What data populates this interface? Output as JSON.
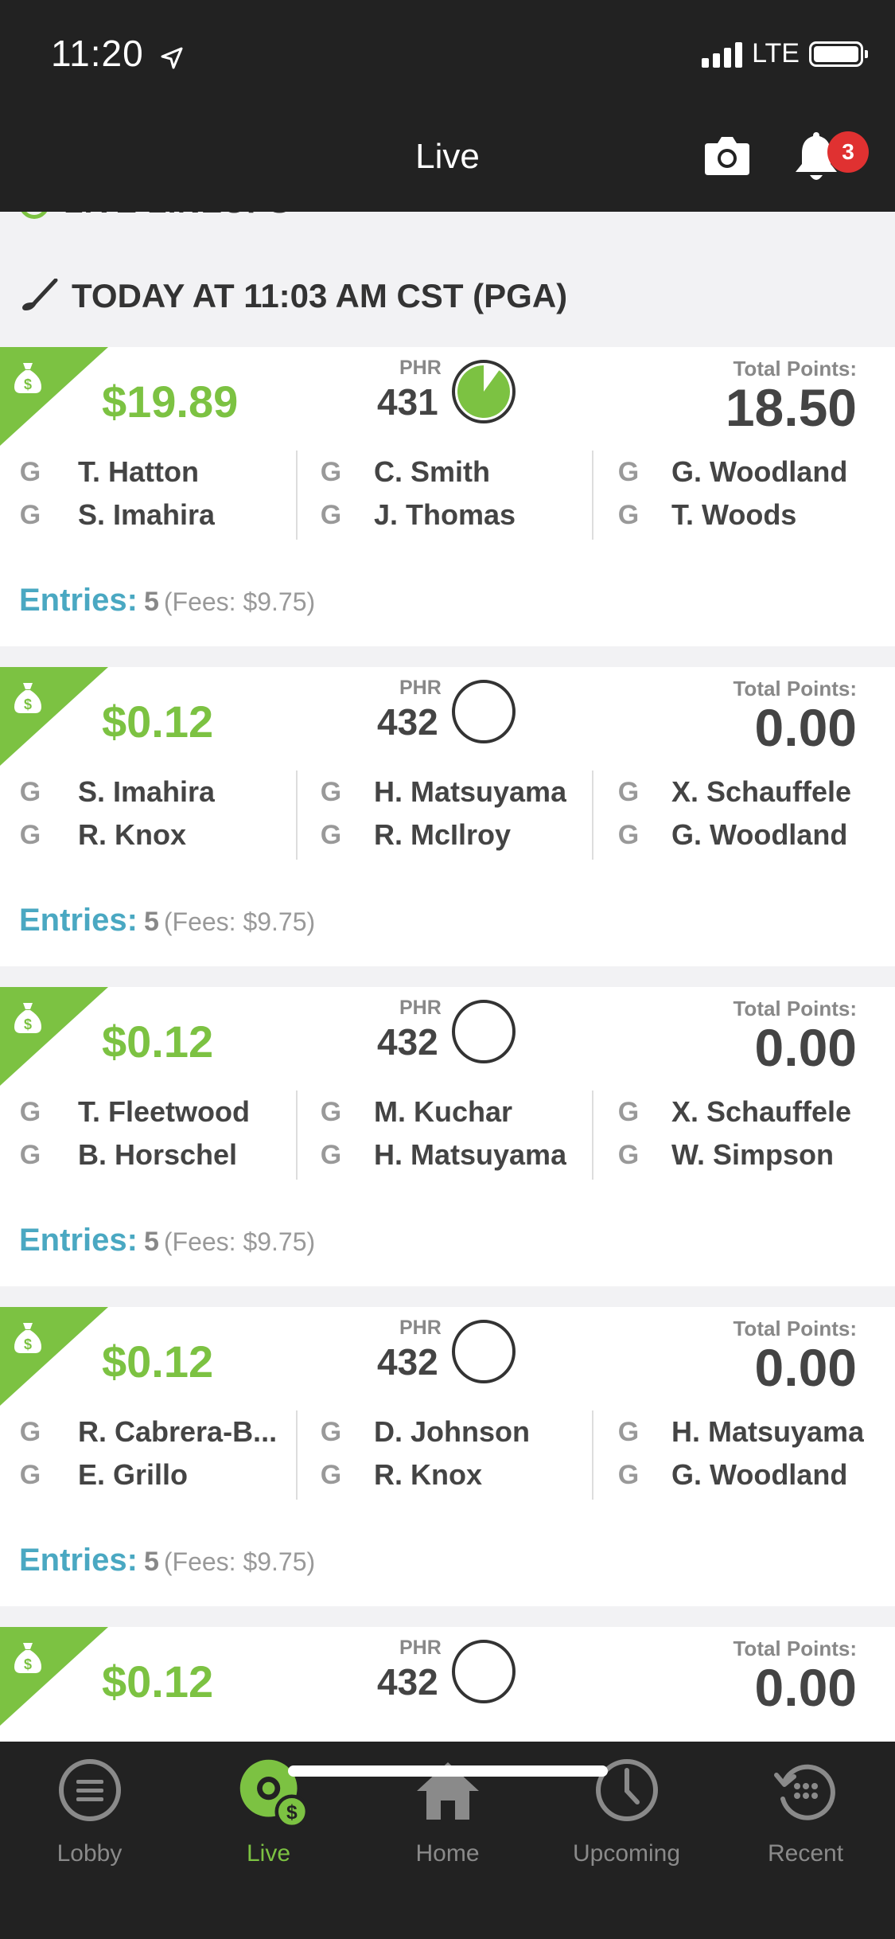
{
  "status_bar": {
    "time": "11:20",
    "network": "LTE"
  },
  "header": {
    "title": "Live",
    "notification_count": "3"
  },
  "section": {
    "peek_title": "LIVE LINEUPS",
    "date_title": "TODAY AT 11:03 AM CST  (PGA)"
  },
  "labels": {
    "phr": "PHR",
    "total_points": "Total Points:",
    "entries": "Entries:"
  },
  "colors": {
    "accent_green": "#7cc242",
    "entries_blue": "#4aa8c2"
  },
  "lineups": [
    {
      "winnings": "$19.89",
      "phr": "431",
      "phr_progress": 0.1,
      "total_points": "18.50",
      "players": [
        [
          "G",
          "T. Hatton"
        ],
        [
          "G",
          "S. Imahira"
        ],
        [
          "G",
          "C. Smith"
        ],
        [
          "G",
          "J. Thomas"
        ],
        [
          "G",
          "G. Woodland"
        ],
        [
          "G",
          "T. Woods"
        ]
      ],
      "entries": "5",
      "fees": "(Fees: $9.75)"
    },
    {
      "winnings": "$0.12",
      "phr": "432",
      "phr_progress": 1.0,
      "total_points": "0.00",
      "players": [
        [
          "G",
          "S. Imahira"
        ],
        [
          "G",
          "R. Knox"
        ],
        [
          "G",
          "H. Matsuyama"
        ],
        [
          "G",
          "R. McIlroy"
        ],
        [
          "G",
          "X. Schauffele"
        ],
        [
          "G",
          "G. Woodland"
        ]
      ],
      "entries": "5",
      "fees": "(Fees: $9.75)"
    },
    {
      "winnings": "$0.12",
      "phr": "432",
      "phr_progress": 1.0,
      "total_points": "0.00",
      "players": [
        [
          "G",
          "T. Fleetwood"
        ],
        [
          "G",
          "B. Horschel"
        ],
        [
          "G",
          "M. Kuchar"
        ],
        [
          "G",
          "H. Matsuyama"
        ],
        [
          "G",
          "X. Schauffele"
        ],
        [
          "G",
          "W. Simpson"
        ]
      ],
      "entries": "5",
      "fees": "(Fees: $9.75)"
    },
    {
      "winnings": "$0.12",
      "phr": "432",
      "phr_progress": 1.0,
      "total_points": "0.00",
      "players": [
        [
          "G",
          "R. Cabrera-B..."
        ],
        [
          "G",
          "E. Grillo"
        ],
        [
          "G",
          "D. Johnson"
        ],
        [
          "G",
          "R. Knox"
        ],
        [
          "G",
          "H. Matsuyama"
        ],
        [
          "G",
          "G. Woodland"
        ]
      ],
      "entries": "5",
      "fees": "(Fees: $9.75)"
    },
    {
      "winnings": "$0.12",
      "phr": "432",
      "phr_progress": 1.0,
      "total_points": "0.00"
    }
  ],
  "tabs": [
    {
      "label": "Lobby",
      "icon": "lobby-icon"
    },
    {
      "label": "Live",
      "icon": "live-icon",
      "active": true
    },
    {
      "label": "Home",
      "icon": "home-icon"
    },
    {
      "label": "Upcoming",
      "icon": "clock-icon"
    },
    {
      "label": "Recent",
      "icon": "recent-icon"
    }
  ]
}
